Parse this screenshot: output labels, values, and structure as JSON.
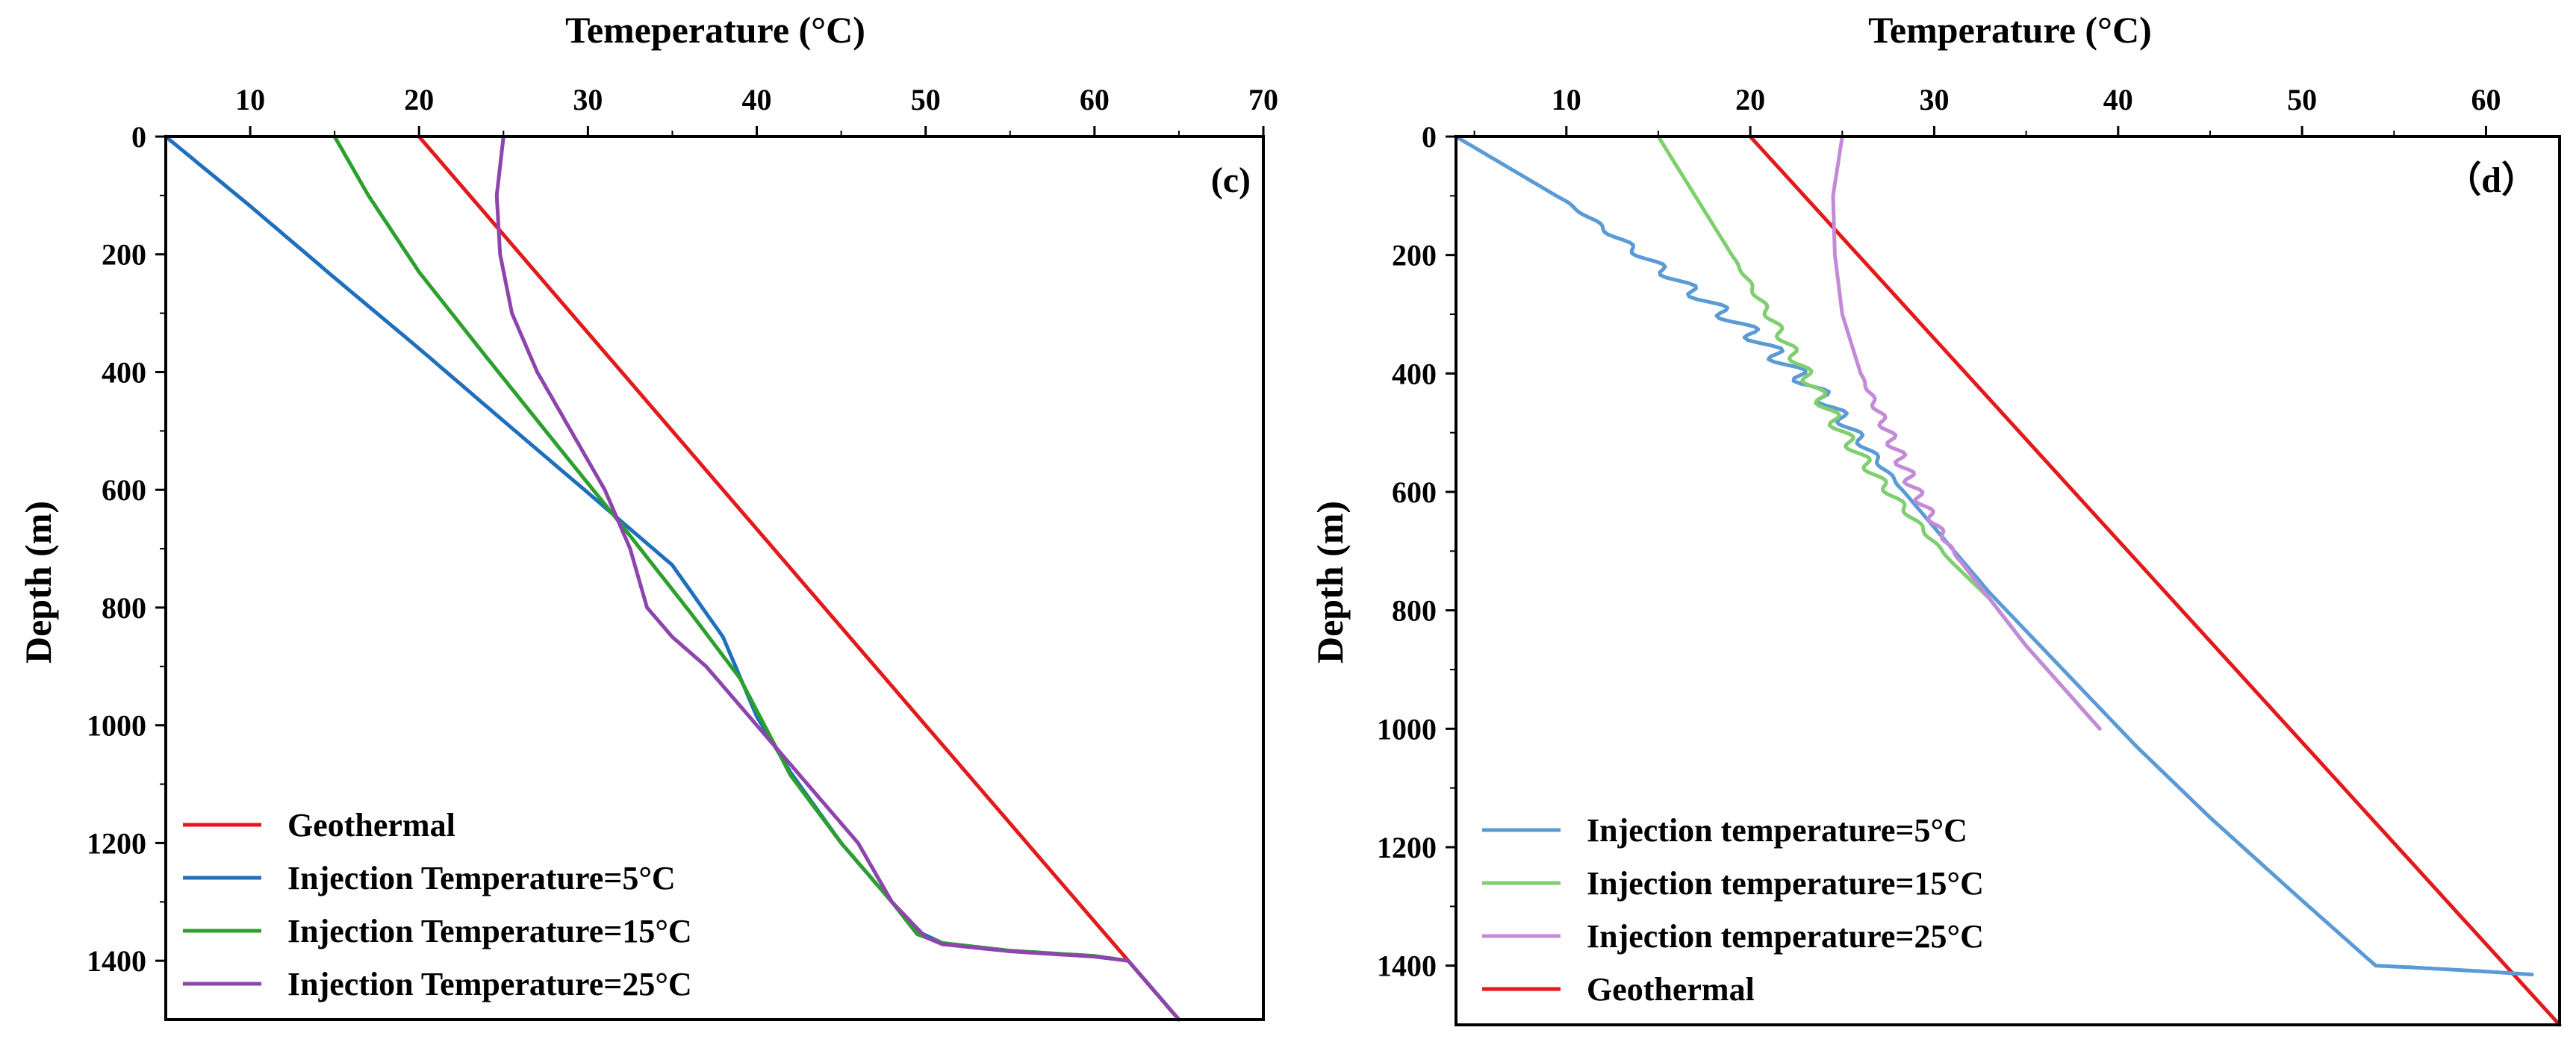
{
  "colors": {
    "geothermal": "#e31a1c",
    "inj5_c": "#1f6fbf",
    "inj15_c": "#2ca02c",
    "inj25_c": "#8e44ad",
    "inj5_d": "#5b9bd5",
    "inj15_d": "#7fcf6f",
    "inj25_d": "#c38ad8",
    "axis": "#000000"
  },
  "chart_data": [
    {
      "id": "c",
      "type": "line",
      "panel_label": "(c)",
      "title": "Temeperature (°C)",
      "xlabel": "Temeperature (°C)",
      "ylabel": "Depth (m)",
      "xlim": [
        5,
        70
      ],
      "ylim": [
        0,
        1500
      ],
      "y_inverted": true,
      "x_axis_position": "top",
      "xticks": [
        10,
        20,
        30,
        40,
        50,
        60,
        70
      ],
      "yticks": [
        0,
        200,
        400,
        600,
        800,
        1000,
        1200,
        1400
      ],
      "legend_position": "bottom-left",
      "legend_order": [
        "geo",
        "inj5",
        "inj15",
        "inj25"
      ],
      "series": [
        {
          "key": "geo",
          "name": "Geothermal",
          "color_key": "geothermal",
          "points": [
            [
              20,
              0
            ],
            [
              62,
              1400
            ],
            [
              65,
              1500
            ]
          ]
        },
        {
          "key": "inj5",
          "name": "Injection Temperature=5°C",
          "color_key": "inj5_c",
          "points": [
            [
              5,
              0
            ],
            [
              10,
              118
            ],
            [
              15,
              240
            ],
            [
              20,
              360
            ],
            [
              25,
              483
            ],
            [
              30,
              605
            ],
            [
              35,
              728
            ],
            [
              38,
              850
            ],
            [
              40,
              985
            ],
            [
              42,
              1080
            ],
            [
              45,
              1200
            ],
            [
              48,
              1300
            ],
            [
              49.5,
              1350
            ],
            [
              51,
              1370
            ],
            [
              55,
              1383
            ],
            [
              60,
              1392
            ],
            [
              62,
              1400
            ],
            [
              65,
              1500
            ]
          ]
        },
        {
          "key": "inj15",
          "name": "Injection Temperature=15°C",
          "color_key": "inj15_c",
          "points": [
            [
              15,
              0
            ],
            [
              17,
              100
            ],
            [
              20,
              230
            ],
            [
              24,
              375
            ],
            [
              28,
              518
            ],
            [
              32,
              660
            ],
            [
              36,
              806
            ],
            [
              39,
              920
            ],
            [
              42,
              1085
            ],
            [
              45,
              1200
            ],
            [
              48,
              1300
            ],
            [
              49.5,
              1355
            ],
            [
              51,
              1370
            ],
            [
              55,
              1383
            ],
            [
              60,
              1392
            ],
            [
              62,
              1400
            ],
            [
              65,
              1500
            ]
          ]
        },
        {
          "key": "inj25",
          "name": "Injection Temperature=25°C",
          "color_key": "inj25_c",
          "points": [
            [
              25,
              0
            ],
            [
              24.6,
              100
            ],
            [
              24.8,
              200
            ],
            [
              25.5,
              300
            ],
            [
              27,
              400
            ],
            [
              29,
              500
            ],
            [
              31,
              600
            ],
            [
              32.5,
              700
            ],
            [
              33,
              750
            ],
            [
              33.5,
              800
            ],
            [
              35,
              850
            ],
            [
              37,
              900
            ],
            [
              40,
              1000
            ],
            [
              43,
              1100
            ],
            [
              46,
              1200
            ],
            [
              48,
              1300
            ],
            [
              50,
              1360
            ],
            [
              51,
              1372
            ],
            [
              55,
              1384
            ],
            [
              60,
              1393
            ],
            [
              62,
              1400
            ],
            [
              65,
              1500
            ]
          ]
        }
      ]
    },
    {
      "id": "d",
      "type": "line",
      "panel_label": "（d）",
      "title": "Temperature (°C)",
      "xlabel": "Temperature (°C)",
      "ylabel": "Depth (m)",
      "xlim": [
        4,
        64
      ],
      "ylim": [
        0,
        1500
      ],
      "y_inverted": true,
      "x_axis_position": "top",
      "xticks": [
        10,
        20,
        30,
        40,
        50,
        60
      ],
      "yticks": [
        0,
        200,
        400,
        600,
        800,
        1000,
        1200,
        1400
      ],
      "legend_position": "bottom-left",
      "legend_order": [
        "inj5",
        "inj15",
        "inj25",
        "geo"
      ],
      "series": [
        {
          "key": "geo",
          "name": "Geothermal",
          "color_key": "geothermal",
          "points": [
            [
              20,
              0
            ],
            [
              64,
              1500
            ]
          ]
        },
        {
          "key": "inj5",
          "name": "Injection temperature=5°C",
          "color_key": "inj5_d",
          "wiggle": {
            "from": 100,
            "to": 600,
            "amplitude": 0.7,
            "cycles": 14
          },
          "points": [
            [
              4,
              0
            ],
            [
              10,
              110
            ],
            [
              15,
              220
            ],
            [
              20,
              330
            ],
            [
              24,
              440
            ],
            [
              27,
              550
            ],
            [
              30,
              660
            ],
            [
              33,
              770
            ],
            [
              37,
              900
            ],
            [
              41,
              1030
            ],
            [
              45,
              1150
            ],
            [
              50,
              1290
            ],
            [
              54,
              1400
            ],
            [
              56,
              1403
            ],
            [
              60,
              1410
            ],
            [
              62.5,
              1415
            ]
          ]
        },
        {
          "key": "inj15",
          "name": "Injection temperature=15°C",
          "color_key": "inj15_d",
          "wiggle": {
            "from": 200,
            "to": 720,
            "amplitude": 0.45,
            "cycles": 14
          },
          "points": [
            [
              15,
              0
            ],
            [
              17,
              100
            ],
            [
              19,
              200
            ],
            [
              21,
              300
            ],
            [
              23,
              400
            ],
            [
              25,
              500
            ],
            [
              27,
              580
            ],
            [
              29,
              650
            ],
            [
              31,
              720
            ],
            [
              33,
              780
            ],
            [
              35,
              860
            ],
            [
              37,
              930
            ],
            [
              39,
              1000
            ]
          ]
        },
        {
          "key": "inj25",
          "name": "Injection temperature=25°C",
          "color_key": "inj25_d",
          "wiggle": {
            "from": 400,
            "to": 720,
            "amplitude": 0.4,
            "cycles": 10
          },
          "points": [
            [
              25,
              0
            ],
            [
              24.5,
              100
            ],
            [
              24.6,
              200
            ],
            [
              25,
              300
            ],
            [
              26,
              400
            ],
            [
              27.5,
              500
            ],
            [
              29,
              600
            ],
            [
              31,
              700
            ],
            [
              33,
              780
            ],
            [
              35,
              860
            ],
            [
              37,
              930
            ],
            [
              39,
              1000
            ]
          ]
        }
      ]
    }
  ]
}
